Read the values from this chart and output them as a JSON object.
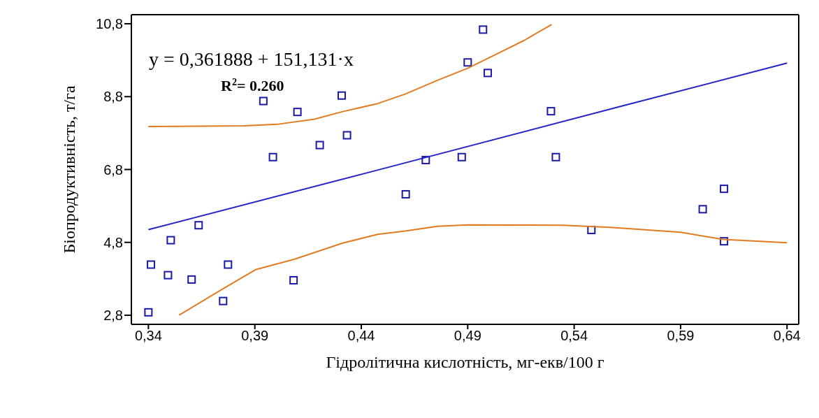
{
  "chart_data": {
    "type": "scatter",
    "xlabel": "Гідролітична кислотність, мг-екв/100 г",
    "ylabel": "Біопродуктивність, т/га",
    "annotations": [
      "y = 0,361888 + 151,131·x",
      "R$^{2}$= 0.260"
    ],
    "xlim": [
      0.332,
      0.6455
    ],
    "ylim": [
      2.55,
      11.05
    ],
    "xticks": [
      {
        "value": 0.34,
        "label": "0,34"
      },
      {
        "value": 0.39,
        "label": "0,39"
      },
      {
        "value": 0.44,
        "label": "0,44"
      },
      {
        "value": 0.49,
        "label": "0,49"
      },
      {
        "value": 0.54,
        "label": "0,54"
      },
      {
        "value": 0.59,
        "label": "0,59"
      },
      {
        "value": 0.64,
        "label": "0,64"
      }
    ],
    "yticks": [
      {
        "value": 2.8,
        "label": "2,8"
      },
      {
        "value": 4.8,
        "label": "4,8"
      },
      {
        "value": 6.8,
        "label": "6,8"
      },
      {
        "value": 8.8,
        "label": "8,8"
      },
      {
        "value": 10.8,
        "label": "10,8"
      }
    ],
    "series": [
      {
        "color": "#1a1aa8",
        "marker": "square",
        "x": [
          0.34,
          0.3412,
          0.3492,
          0.3505,
          0.3603,
          0.3636,
          0.3751,
          0.3774,
          0.394,
          0.3985,
          0.4082,
          0.41,
          0.4205,
          0.4308,
          0.4333,
          0.4609,
          0.4703,
          0.4872,
          0.49,
          0.4972,
          0.4994,
          0.5291,
          0.5314,
          0.5481,
          0.6004,
          0.6104,
          0.6104
        ],
        "values": [
          2.88,
          4.19,
          3.9,
          4.86,
          3.78,
          5.27,
          3.19,
          4.19,
          8.68,
          7.14,
          3.76,
          8.38,
          7.47,
          8.83,
          7.74,
          6.12,
          7.06,
          7.14,
          9.74,
          10.64,
          9.45,
          8.4,
          7.14,
          5.14,
          5.71,
          6.27,
          4.83
        ]
      },
      {
        "type": "line",
        "color": "#2424c8",
        "marker": "none",
        "line_style": "solid",
        "x": [
          0.34,
          0.4454,
          0.563,
          0.64
        ],
        "values": [
          5.15,
          6.75,
          8.55,
          9.72
        ]
      },
      {
        "type": "line",
        "color": "#e07b20",
        "marker": "none",
        "line_style": "solid",
        "x": [
          0.34,
          0.3851,
          0.4005,
          0.418,
          0.4313,
          0.4477,
          0.4606,
          0.4758,
          0.49,
          0.5022,
          0.5164,
          0.5294
        ],
        "values": [
          7.98,
          8.0,
          8.04,
          8.18,
          8.39,
          8.61,
          8.87,
          9.25,
          9.58,
          9.93,
          10.34,
          10.78
        ]
      },
      {
        "type": "line",
        "color": "#e07b20",
        "marker": "none",
        "line_style": "solid",
        "x": [
          0.3544,
          0.3749,
          0.3903,
          0.4087,
          0.4313,
          0.4477,
          0.4606,
          0.4758,
          0.49,
          0.5346,
          0.5569,
          0.59,
          0.61,
          0.64
        ],
        "values": [
          2.8,
          3.52,
          4.05,
          4.34,
          4.78,
          5.02,
          5.11,
          5.24,
          5.28,
          5.27,
          5.21,
          5.08,
          4.88,
          4.79
        ]
      }
    ]
  }
}
